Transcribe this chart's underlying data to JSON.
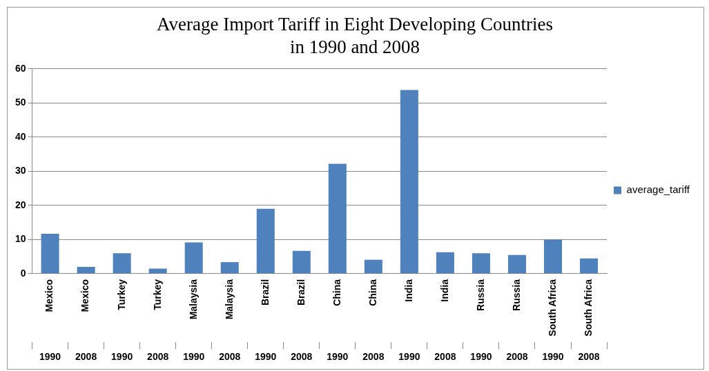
{
  "chart_data": {
    "type": "bar",
    "title": "Average Import Tariff in Eight Developing Countries\nin 1990 and 2008",
    "categories": [
      "Mexico\n1990",
      "Mexico\n2008",
      "Turkey\n1990",
      "Turkey\n2008",
      "Malaysia\n1990",
      "Malaysia\n2008",
      "Brazil\n1990",
      "Brazil\n2008",
      "China\n1990",
      "China\n2008",
      "India\n1990",
      "India\n2008",
      "Russia\n1990",
      "Russia\n2008",
      "South Africa\n1990",
      "South Africa\n2008"
    ],
    "series": [
      {
        "name": "average_tariff",
        "color": "#4f81bd",
        "values": [
          11.7,
          2,
          6,
          1.5,
          9.2,
          3.4,
          19,
          6.7,
          32.2,
          4.1,
          53.8,
          6.3,
          6,
          5.5,
          10,
          4.5
        ]
      }
    ],
    "ylim": [
      0,
      60
    ],
    "yticks": [
      0,
      10,
      20,
      30,
      40,
      50,
      60
    ],
    "grid": "y",
    "legend": "right"
  }
}
